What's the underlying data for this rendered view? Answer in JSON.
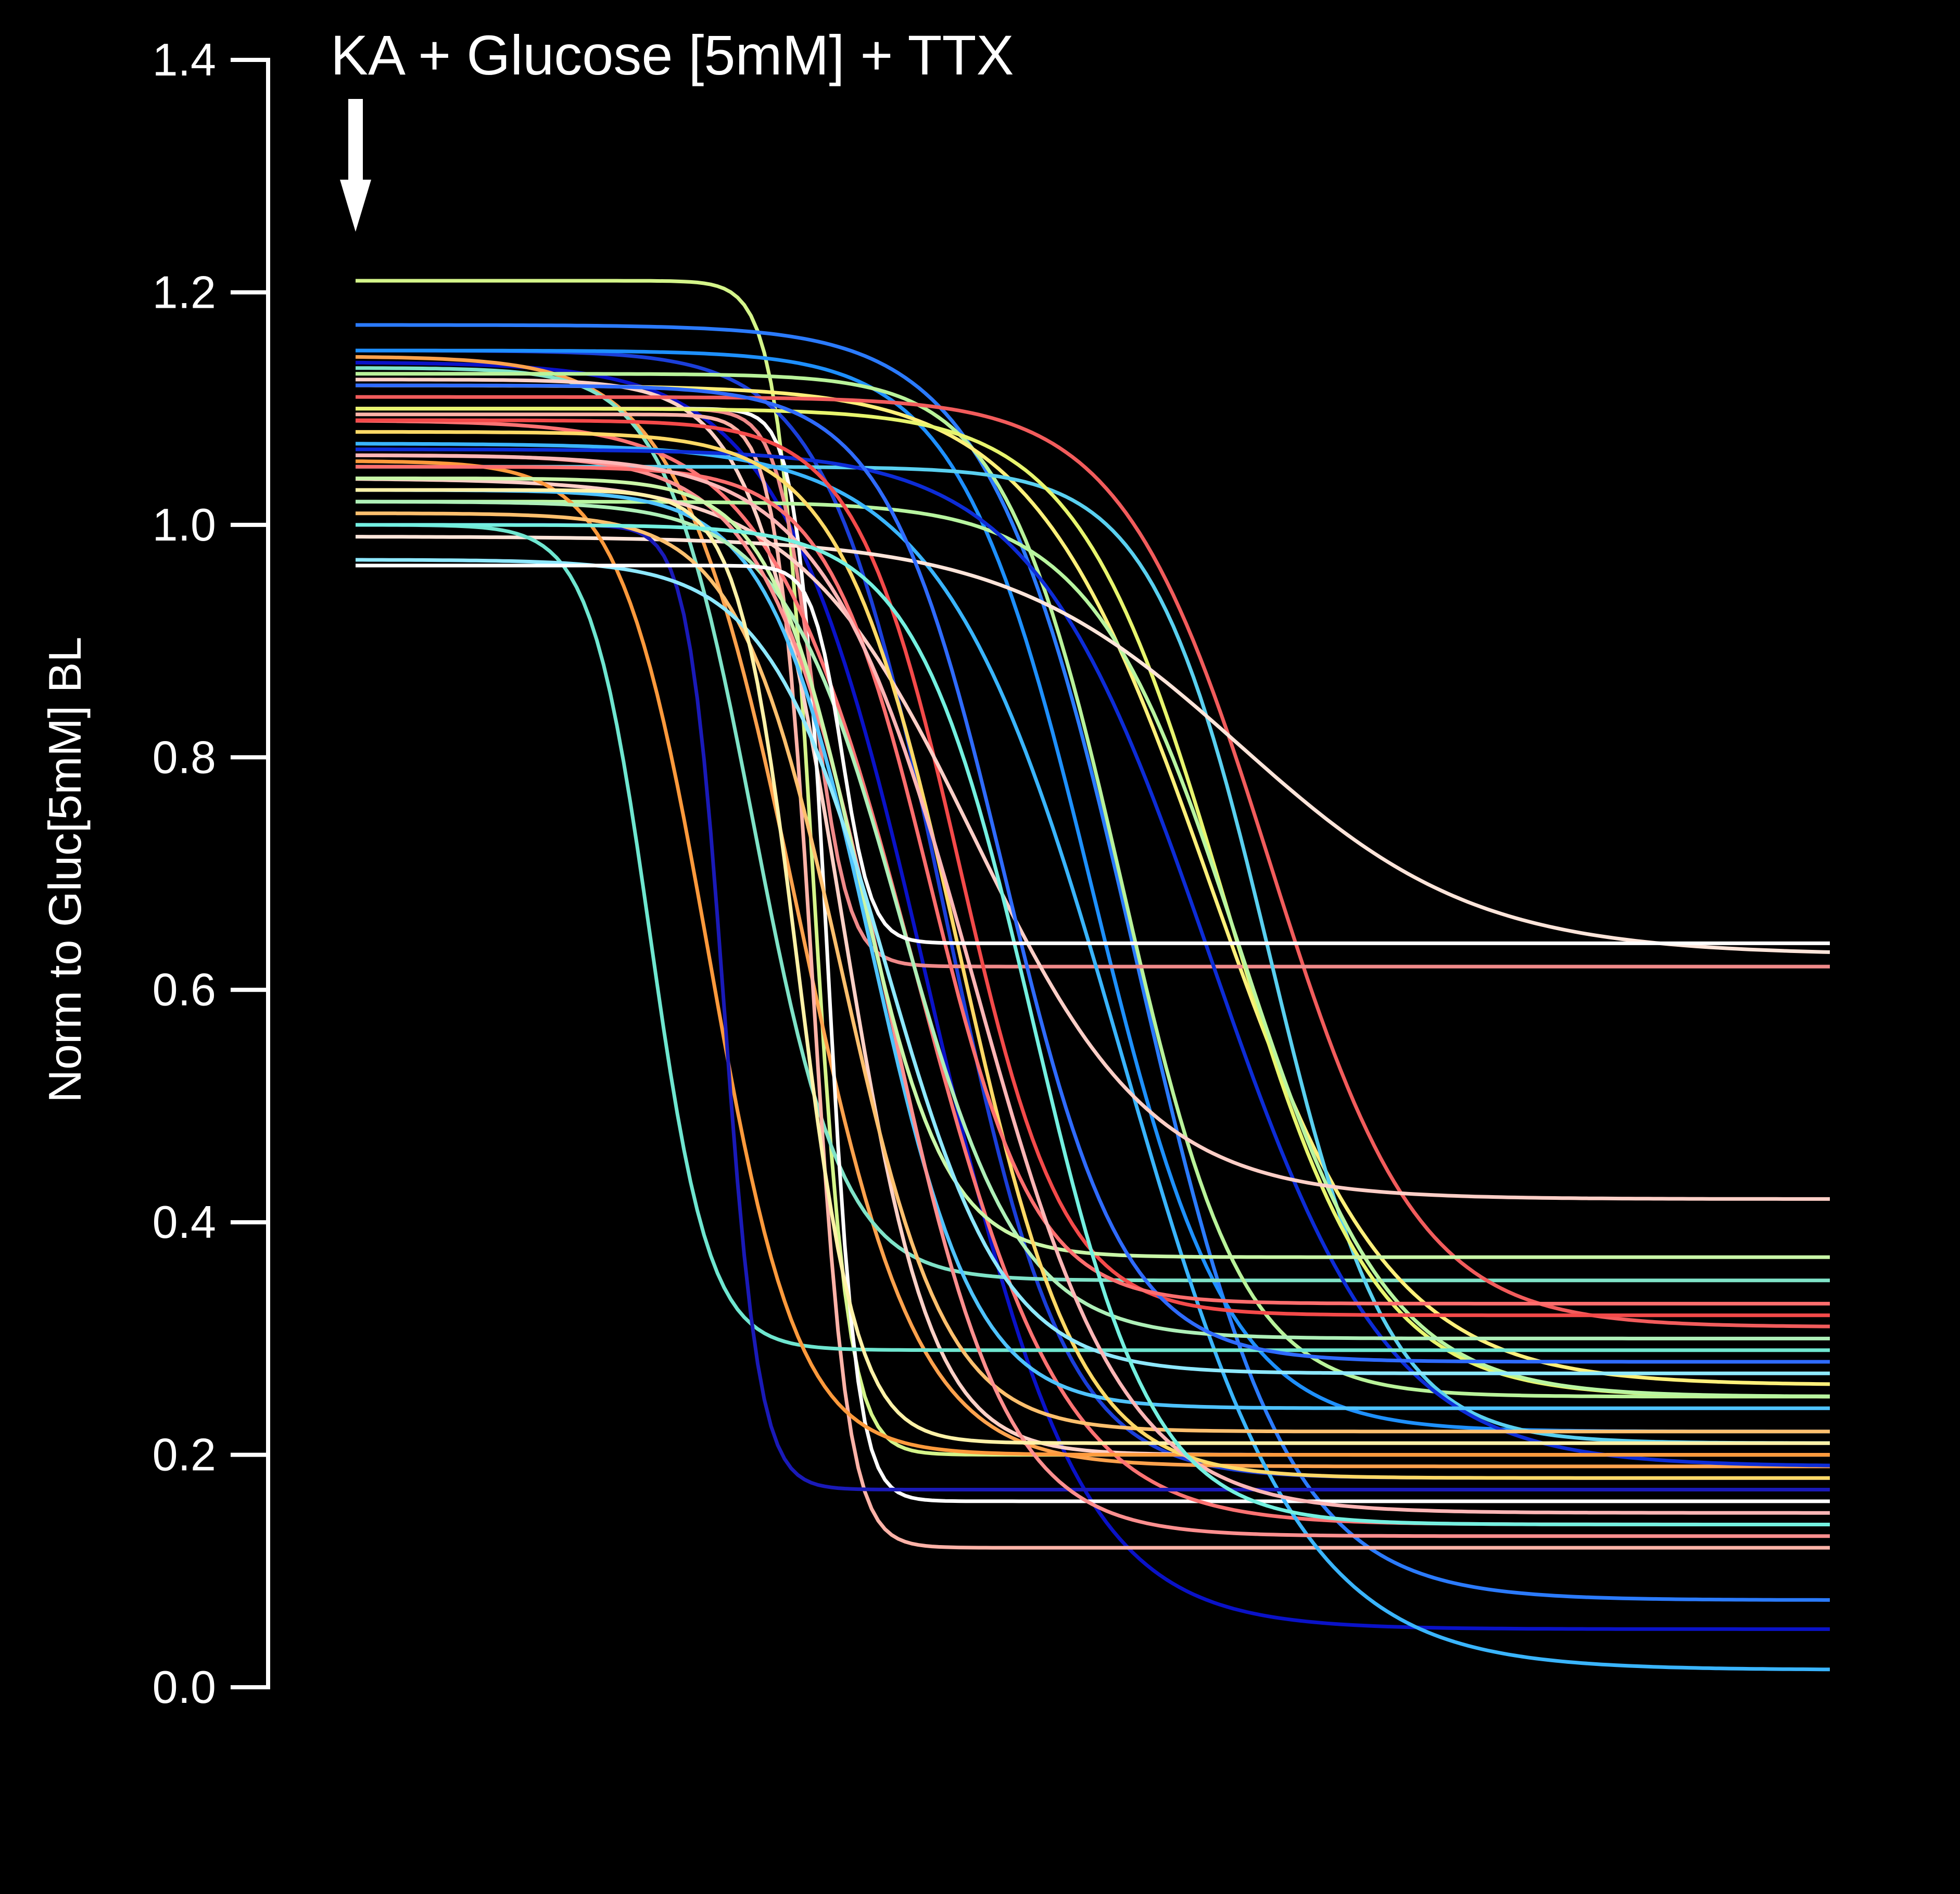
{
  "chart_data": {
    "type": "line",
    "title": "",
    "xlabel": "",
    "ylabel": "Norm to Gluc[5mM] BL",
    "ylim": [
      0,
      1.4
    ],
    "xlim": [
      0,
      1
    ],
    "y_ticks": [
      0.0,
      0.2,
      0.4,
      0.6,
      0.8,
      1.0,
      1.2,
      1.4
    ],
    "y_tick_labels": [
      "0.0",
      "0.2",
      "0.4",
      "0.6",
      "0.8",
      "1.0",
      "1.2",
      "1.4"
    ],
    "x_axis_visible": false,
    "grid": false,
    "legend": "none",
    "background_color": "#000000",
    "axis_color": "#ffffff",
    "annotation": {
      "text": "KA + Glucose [5mM] + TTX",
      "arrow": "down",
      "x": 0.0
    },
    "series_note": "Each trace is a sigmoidal decline: start level, end level, midpoint time (x) and transition width (x units).",
    "series": [
      {
        "color": "#d4f58a",
        "start": 1.21,
        "end": 0.2,
        "mid": 0.31,
        "width": 0.012
      },
      {
        "color": "#2b7bff",
        "start": 1.172,
        "end": 0.075,
        "mid": 0.53,
        "width": 0.05
      },
      {
        "color": "#1b3fd9",
        "start": 1.15,
        "end": 0.18,
        "mid": 0.4,
        "width": 0.04
      },
      {
        "color": "#1e90ff",
        "start": 1.15,
        "end": 0.22,
        "mid": 0.5,
        "width": 0.045
      },
      {
        "color": "#0a12c8",
        "start": 1.14,
        "end": 0.05,
        "mid": 0.39,
        "width": 0.05
      },
      {
        "color": "#ffa24d",
        "start": 1.145,
        "end": 0.19,
        "mid": 0.3,
        "width": 0.04
      },
      {
        "color": "#7fe3c8",
        "start": 1.135,
        "end": 0.35,
        "mid": 0.27,
        "width": 0.03
      },
      {
        "color": "#b9f39a",
        "start": 1.13,
        "end": 0.25,
        "mid": 0.52,
        "width": 0.04
      },
      {
        "color": "#fff07a",
        "start": 1.12,
        "end": 0.26,
        "mid": 0.58,
        "width": 0.06
      },
      {
        "color": "#ffd1c7",
        "start": 1.125,
        "end": 0.2,
        "mid": 0.33,
        "width": 0.03
      },
      {
        "color": "#ffffff",
        "start": 1.1,
        "end": 0.16,
        "mid": 0.32,
        "width": 0.01
      },
      {
        "color": "#f25c5c",
        "start": 1.11,
        "end": 0.31,
        "mid": 0.62,
        "width": 0.05
      },
      {
        "color": "#f08a8a",
        "start": 1.1,
        "end": 0.62,
        "mid": 0.31,
        "width": 0.012
      },
      {
        "color": "#ffb3a8",
        "start": 1.095,
        "end": 0.12,
        "mid": 0.31,
        "width": 0.012
      },
      {
        "color": "#ff7373",
        "start": 1.09,
        "end": 0.14,
        "mid": 0.38,
        "width": 0.05
      },
      {
        "color": "#5ad0f0",
        "start": 1.05,
        "end": 0.21,
        "mid": 0.62,
        "width": 0.04
      },
      {
        "color": "#e8f56e",
        "start": 1.1,
        "end": 0.25,
        "mid": 0.59,
        "width": 0.05
      },
      {
        "color": "#b8f5a0",
        "start": 1.02,
        "end": 0.25,
        "mid": 0.6,
        "width": 0.05
      },
      {
        "color": "#3ab5ff",
        "start": 1.07,
        "end": 0.015,
        "mid": 0.52,
        "width": 0.06
      },
      {
        "color": "#0d2cd6",
        "start": 1.065,
        "end": 0.19,
        "mid": 0.58,
        "width": 0.06
      },
      {
        "color": "#f44a4a",
        "start": 1.09,
        "end": 0.32,
        "mid": 0.41,
        "width": 0.035
      },
      {
        "color": "#ffe5da",
        "start": 0.99,
        "end": 0.63,
        "mid": 0.6,
        "width": 0.08
      },
      {
        "color": "#ffcfc7",
        "start": 1.04,
        "end": 0.42,
        "mid": 0.42,
        "width": 0.06
      },
      {
        "color": "#6fe6d0",
        "start": 1.0,
        "end": 0.29,
        "mid": 0.2,
        "width": 0.02
      },
      {
        "color": "#ff9a3c",
        "start": 1.055,
        "end": 0.2,
        "mid": 0.24,
        "width": 0.03
      },
      {
        "color": "#1a1ab8",
        "start": 1.0,
        "end": 0.17,
        "mid": 0.25,
        "width": 0.012
      },
      {
        "color": "#4fc3ff",
        "start": 1.03,
        "end": 0.24,
        "mid": 0.35,
        "width": 0.035
      },
      {
        "color": "#aef0b8",
        "start": 1.02,
        "end": 0.3,
        "mid": 0.37,
        "width": 0.04
      },
      {
        "color": "#ffc06e",
        "start": 1.01,
        "end": 0.22,
        "mid": 0.33,
        "width": 0.035
      },
      {
        "color": "#ff8f8f",
        "start": 1.06,
        "end": 0.13,
        "mid": 0.36,
        "width": 0.04
      },
      {
        "color": "#c9f7a8",
        "start": 1.04,
        "end": 0.37,
        "mid": 0.34,
        "width": 0.03
      },
      {
        "color": "#2f6bff",
        "start": 1.12,
        "end": 0.28,
        "mid": 0.44,
        "width": 0.04
      },
      {
        "color": "#ffd966",
        "start": 1.08,
        "end": 0.18,
        "mid": 0.41,
        "width": 0.04
      },
      {
        "color": "#ff6e6e",
        "start": 1.05,
        "end": 0.33,
        "mid": 0.39,
        "width": 0.035
      },
      {
        "color": "#8ee8ff",
        "start": 0.97,
        "end": 0.27,
        "mid": 0.36,
        "width": 0.04
      },
      {
        "color": "#fff2a8",
        "start": 1.03,
        "end": 0.21,
        "mid": 0.3,
        "width": 0.02
      },
      {
        "color": "#ffb6b6",
        "start": 1.06,
        "end": 0.15,
        "mid": 0.42,
        "width": 0.05
      },
      {
        "color": "#74f0e0",
        "start": 1.0,
        "end": 0.14,
        "mid": 0.46,
        "width": 0.04
      },
      {
        "color": "#ffffff",
        "start": 0.965,
        "end": 0.64,
        "mid": 0.33,
        "width": 0.01
      }
    ]
  }
}
